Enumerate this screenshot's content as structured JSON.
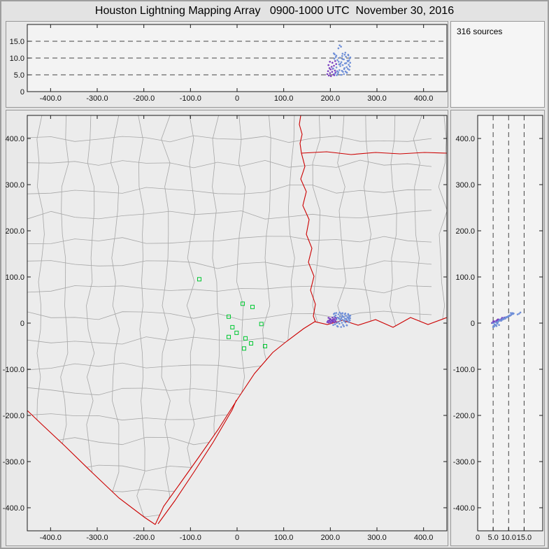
{
  "title": "Houston Lightning Mapping Array   0900-1000 UTC  November 30, 2016",
  "sources_panel": {
    "label": "316 sources"
  },
  "colors": {
    "state_border": "#cc0000",
    "county_line": "#a6a6a6",
    "station": "#00c832",
    "source_blue": "#6f8fd8",
    "source_purple": "#7a3fc0",
    "plot_bg": "#f3f3f3",
    "map_bg": "#ececec",
    "gridline": "#444444",
    "frame": "#1a1a1a"
  },
  "chart_data": {
    "type": "scatter",
    "title": "Houston Lightning Mapping Array 0900-1000 UTC November 30, 2016",
    "sources_count": 316,
    "panels": {
      "alt_vs_ew": {
        "xlim": [
          -450,
          450
        ],
        "ylim": [
          0,
          20
        ],
        "gridlines_alt_km": [
          5,
          10,
          15
        ],
        "legend": "altitude (km) vs east-west distance (km)"
      },
      "plan_view_map": {
        "xlim": [
          -450,
          450
        ],
        "ylim": [
          -450,
          450
        ],
        "legend": "plan view, SE Texas / W Louisiana with county and state borders"
      },
      "alt_vs_ns": {
        "xlim": [
          0,
          21
        ],
        "ylim": [
          -450,
          450
        ],
        "gridlines_alt_km": [
          5,
          10,
          15
        ],
        "legend": "north-south distance (km) vs altitude (km)"
      }
    },
    "axes": {
      "ew_ticks": {
        "values": [
          -400,
          -300,
          -200,
          -100,
          0,
          100,
          200,
          300,
          400
        ],
        "labels": [
          "-400.0",
          "-300.0",
          "-200.0",
          "-100.0",
          "0",
          "100.0",
          "200.0",
          "300.0",
          "400.0"
        ]
      },
      "ns_ticks": {
        "values": [
          400,
          300,
          200,
          100,
          0,
          -100,
          -200,
          -300,
          -400
        ],
        "labels": [
          "400.0",
          "300.0",
          "200.0",
          "100.0",
          "0",
          "-100.0",
          "-200.0",
          "-300.0",
          "-400.0"
        ]
      },
      "alt_ticks": {
        "values": [
          0,
          5,
          10,
          15
        ],
        "labels": [
          "0",
          "5.0",
          "10.0",
          "15.0"
        ]
      }
    },
    "series": [
      {
        "name": "vhf_sources_blue",
        "marker": "dot",
        "color": "#6f8fd8",
        "columns": [
          "east_km",
          "north_km",
          "alt_km"
        ],
        "points": [
          [
            206.2,
            -4.1,
            6.9
          ],
          [
            208.8,
            14.2,
            9.8
          ],
          [
            210.1,
            -2.5,
            5.4
          ],
          [
            211.7,
            16.8,
            10.3
          ],
          [
            213.2,
            7.8,
            7.2
          ],
          [
            214.6,
            -6.3,
            6.1
          ],
          [
            215.3,
            12.1,
            9.4
          ],
          [
            216.9,
            2.4,
            5.8
          ],
          [
            217.4,
            18.9,
            12.9
          ],
          [
            218.8,
            9.5,
            8.1
          ],
          [
            219.5,
            -1.2,
            6.4
          ],
          [
            220.7,
            15.3,
            10.1
          ],
          [
            221.4,
            5.2,
            7.6
          ],
          [
            222.9,
            20.4,
            13.4
          ],
          [
            223.6,
            11.0,
            8.8
          ],
          [
            224.8,
            0.8,
            6.2
          ],
          [
            225.5,
            16.9,
            10.6
          ],
          [
            226.7,
            7.1,
            7.9
          ],
          [
            227.3,
            -3.8,
            5.9
          ],
          [
            228.9,
            13.4,
            9.6
          ],
          [
            229.6,
            3.9,
            6.7
          ],
          [
            230.8,
            19.2,
            11.0
          ],
          [
            231.5,
            9.9,
            8.4
          ],
          [
            232.7,
            1.5,
            6.0
          ],
          [
            233.4,
            15.8,
            10.4
          ],
          [
            234.9,
            6.4,
            7.3
          ],
          [
            235.6,
            -5.0,
            5.6
          ],
          [
            236.8,
            12.7,
            9.2
          ],
          [
            237.5,
            4.6,
            6.8
          ],
          [
            238.7,
            17.6,
            10.8
          ],
          [
            239.4,
            8.8,
            8.0
          ],
          [
            240.6,
            2.0,
            6.5
          ],
          [
            241.3,
            14.9,
            9.9
          ],
          [
            242.5,
            10.6,
            8.6
          ],
          [
            207.5,
            19.7,
            11.4
          ],
          [
            209.3,
            21.3,
            11.1
          ],
          [
            212.9,
            22.0,
            10.7
          ],
          [
            216.1,
            -7.6,
            5.3
          ],
          [
            219.9,
            23.1,
            13.8
          ],
          [
            223.1,
            -8.4,
            5.0
          ],
          [
            226.2,
            21.7,
            11.3
          ],
          [
            229.1,
            -6.9,
            5.2
          ],
          [
            232.2,
            20.9,
            11.6
          ],
          [
            235.1,
            -4.4,
            5.7
          ],
          [
            238.2,
            19.5,
            11.0
          ],
          [
            241.8,
            6.0,
            7.5
          ],
          [
            213.8,
            0.1,
            4.9
          ],
          [
            217.9,
            10.4,
            8.9
          ],
          [
            221.9,
            8.3,
            8.3
          ],
          [
            225.9,
            13.9,
            9.7
          ],
          [
            230.2,
            5.7,
            7.0
          ],
          [
            234.2,
            9.3,
            8.5
          ],
          [
            237.9,
            11.8,
            9.0
          ],
          [
            240.1,
            13.1,
            9.3
          ],
          [
            242.9,
            16.2,
            10.2
          ]
        ]
      },
      {
        "name": "vhf_sources_purple",
        "marker": "dot",
        "color": "#7a3fc0",
        "columns": [
          "east_km",
          "north_km",
          "alt_km"
        ],
        "points": [
          [
            193.5,
            2.1,
            5.2
          ],
          [
            195.2,
            4.8,
            6.1
          ],
          [
            196.8,
            1.0,
            4.8
          ],
          [
            198.1,
            6.2,
            7.0
          ],
          [
            199.4,
            3.3,
            5.5
          ],
          [
            200.6,
            8.1,
            6.6
          ],
          [
            201.3,
            0.2,
            4.6
          ],
          [
            202.8,
            5.5,
            7.4
          ],
          [
            203.9,
            2.9,
            5.9
          ],
          [
            205.2,
            7.3,
            6.8
          ],
          [
            206.5,
            4.1,
            5.1
          ],
          [
            207.8,
            9.0,
            7.7
          ],
          [
            208.4,
            1.7,
            4.9
          ],
          [
            209.9,
            6.6,
            6.3
          ],
          [
            211.2,
            3.6,
            5.7
          ],
          [
            212.5,
            10.2,
            8.2
          ],
          [
            196.0,
            11.5,
            7.9
          ],
          [
            204.5,
            11.9,
            8.6
          ],
          [
            199.0,
            9.8,
            8.9
          ],
          [
            210.5,
            12.4,
            9.1
          ]
        ]
      },
      {
        "name": "lma_stations",
        "marker": "open-square",
        "color": "#00c832",
        "columns": [
          "east_km",
          "north_km"
        ],
        "points": [
          [
            -81,
            95
          ],
          [
            12,
            42
          ],
          [
            33,
            35
          ],
          [
            -18,
            14
          ],
          [
            52,
            -2
          ],
          [
            -10,
            -9
          ],
          [
            -1,
            -21
          ],
          [
            -18,
            -30
          ],
          [
            18,
            -33
          ],
          [
            30,
            -44
          ],
          [
            60,
            -50
          ],
          [
            15,
            -55
          ]
        ]
      }
    ]
  }
}
